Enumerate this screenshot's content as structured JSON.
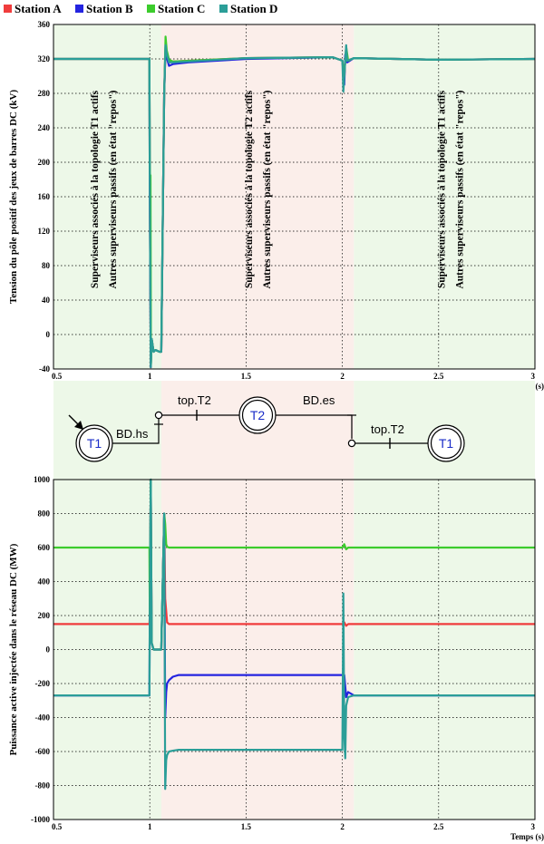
{
  "legend": [
    {
      "name": "Station A",
      "color": "#f03c3c"
    },
    {
      "name": "Station B",
      "color": "#2424e0"
    },
    {
      "name": "Station C",
      "color": "#3ccc2c"
    },
    {
      "name": "Station D",
      "color": "#2b9e98"
    }
  ],
  "colors": {
    "phase_t1": "#edf8e8",
    "phase_t2": "#fbeeea",
    "grid": "#000000"
  },
  "chart_data": [
    {
      "type": "line",
      "xlabel": "Temps (s)",
      "ylabel": "Tension du pôle positif des jeux de barres DC (kV)",
      "xlim": [
        0.5,
        3
      ],
      "ylim": [
        -40,
        360
      ],
      "xticks": [
        "0.5",
        "1",
        "1.5",
        "2",
        "2.5",
        "3"
      ],
      "yticks": [
        "-40",
        "0",
        "40",
        "80",
        "120",
        "160",
        "200",
        "240",
        "280",
        "320",
        "360"
      ],
      "grid": true,
      "phases": [
        {
          "from": 0.5,
          "to": 1.06,
          "topology": "T1"
        },
        {
          "from": 1.06,
          "to": 2.06,
          "topology": "T2"
        },
        {
          "from": 2.06,
          "to": 3.0,
          "topology": "T1"
        }
      ],
      "annotations": [
        {
          "x": 0.75,
          "lines": [
            "Superviseurs associés à la topologie T1 actifs",
            "Autres superviseurs passifs (en état \"repos\")"
          ]
        },
        {
          "x": 1.55,
          "lines": [
            "Superviseurs associés à la topologie T2 actifs",
            "Autres superviseurs passifs (en état \"repos\")"
          ]
        },
        {
          "x": 2.55,
          "lines": [
            "Superviseurs associés à la topologie T1 actifs",
            "Autres superviseurs passifs (en état \"repos\")"
          ]
        }
      ],
      "series": [
        {
          "name": "Station A",
          "x": [
            0.5,
            0.998,
            1.0,
            1.005,
            1.01,
            1.02,
            1.03,
            1.05,
            1.06,
            1.075,
            1.082,
            1.088,
            1.1,
            1.12,
            1.5,
            1.95,
            2.0,
            2.01,
            2.015,
            2.025,
            2.06,
            2.5,
            3.0
          ],
          "y": [
            320,
            320,
            170,
            -38,
            -5,
            -20,
            -18,
            -20,
            -20,
            280,
            332,
            328,
            318,
            317,
            321,
            322,
            318,
            295,
            322,
            318,
            321,
            319,
            320
          ]
        },
        {
          "name": "Station B",
          "x": [
            0.5,
            0.998,
            1.0,
            1.005,
            1.01,
            1.02,
            1.03,
            1.05,
            1.06,
            1.075,
            1.082,
            1.09,
            1.1,
            1.12,
            1.2,
            1.5,
            1.95,
            2.0,
            2.01,
            2.015,
            2.025,
            2.06,
            2.5,
            3.0
          ],
          "y": [
            320,
            320,
            170,
            -38,
            -5,
            -20,
            -18,
            -20,
            -20,
            280,
            335,
            320,
            312,
            314,
            316,
            320,
            322,
            318,
            290,
            325,
            316,
            321,
            319,
            320
          ]
        },
        {
          "name": "Station C",
          "x": [
            0.5,
            0.998,
            1.0,
            1.002,
            1.004,
            1.006,
            1.01,
            1.02,
            1.03,
            1.05,
            1.06,
            1.075,
            1.082,
            1.088,
            1.1,
            1.12,
            1.5,
            1.95,
            2.0,
            2.01,
            2.02,
            2.03,
            2.06,
            2.5,
            3.0
          ],
          "y": [
            320,
            320,
            200,
            178,
            185,
            -35,
            -5,
            -20,
            -18,
            -20,
            -20,
            280,
            346,
            330,
            319,
            317,
            321,
            322,
            318,
            300,
            334,
            318,
            321,
            319,
            320
          ]
        },
        {
          "name": "Station D",
          "x": [
            0.5,
            0.998,
            1.0,
            1.005,
            1.01,
            1.02,
            1.03,
            1.05,
            1.06,
            1.075,
            1.082,
            1.088,
            1.1,
            1.12,
            1.5,
            1.95,
            2.0,
            2.005,
            2.01,
            2.02,
            2.025,
            2.06,
            2.5,
            3.0
          ],
          "y": [
            320,
            320,
            170,
            -38,
            -5,
            -20,
            -18,
            -20,
            -20,
            280,
            336,
            326,
            316,
            316,
            321,
            322,
            318,
            282,
            300,
            336,
            318,
            321,
            319,
            320
          ]
        }
      ]
    },
    {
      "type": "line",
      "xlabel": "Temps (s)",
      "ylabel": "Puissance active injectée dans le réseau DC (MW)",
      "xlim": [
        0.5,
        3
      ],
      "ylim": [
        -1000,
        1000
      ],
      "xticks": [
        "0.5",
        "1",
        "1.5",
        "2",
        "2.5",
        "3"
      ],
      "yticks": [
        "-1000",
        "-800",
        "-600",
        "-400",
        "-200",
        "0",
        "200",
        "400",
        "600",
        "800",
        "1000"
      ],
      "grid": true,
      "series": [
        {
          "name": "Station A",
          "x": [
            0.5,
            0.998,
            1.0,
            1.005,
            1.01,
            1.02,
            1.06,
            1.075,
            1.08,
            1.09,
            1.1,
            1.95,
            2.0,
            2.01,
            2.02,
            2.03,
            2.06,
            3.0
          ],
          "y": [
            150,
            150,
            200,
            1000,
            40,
            0,
            0,
            800,
            300,
            160,
            150,
            150,
            150,
            160,
            140,
            150,
            150,
            150
          ]
        },
        {
          "name": "Station B",
          "x": [
            0.5,
            0.998,
            1.0,
            1.005,
            1.01,
            1.02,
            1.06,
            1.075,
            1.08,
            1.085,
            1.09,
            1.1,
            1.12,
            1.15,
            1.95,
            2.0,
            2.01,
            2.02,
            2.03,
            2.06,
            3.0
          ],
          "y": [
            -270,
            -270,
            200,
            1000,
            40,
            0,
            0,
            800,
            -400,
            -250,
            -200,
            -180,
            -160,
            -150,
            -150,
            -150,
            -150,
            -280,
            -250,
            -270,
            -270
          ]
        },
        {
          "name": "Station C",
          "x": [
            0.5,
            0.998,
            1.0,
            1.005,
            1.01,
            1.02,
            1.06,
            1.075,
            1.08,
            1.085,
            1.09,
            1.1,
            1.95,
            2.0,
            2.01,
            2.02,
            2.03,
            2.06,
            3.0
          ],
          "y": [
            600,
            600,
            200,
            1000,
            40,
            0,
            0,
            800,
            740,
            620,
            605,
            600,
            600,
            600,
            620,
            590,
            600,
            600,
            600
          ]
        },
        {
          "name": "Station D",
          "x": [
            0.5,
            0.998,
            1.0,
            1.005,
            1.01,
            1.02,
            1.06,
            1.075,
            1.08,
            1.085,
            1.09,
            1.1,
            1.12,
            1.15,
            1.95,
            2.0,
            2.005,
            2.01,
            2.015,
            2.02,
            2.03,
            2.06,
            3.0
          ],
          "y": [
            -270,
            -270,
            200,
            1000,
            40,
            0,
            0,
            800,
            -820,
            -650,
            -620,
            -600,
            -595,
            -590,
            -590,
            -590,
            330,
            -500,
            -640,
            -330,
            -280,
            -270,
            -270
          ]
        }
      ]
    }
  ],
  "sfc": {
    "states": [
      {
        "id": "t1-initial",
        "label": "T1"
      },
      {
        "id": "t2",
        "label": "T2"
      },
      {
        "id": "t1-final",
        "label": "T1"
      }
    ],
    "transitions": [
      {
        "id": "bd-hs",
        "label": "BD.hs"
      },
      {
        "id": "top-t2-1",
        "label": "top.T2"
      },
      {
        "id": "bd-es",
        "label": "BD.es"
      },
      {
        "id": "top-t2-2",
        "label": "top.T2"
      }
    ]
  }
}
